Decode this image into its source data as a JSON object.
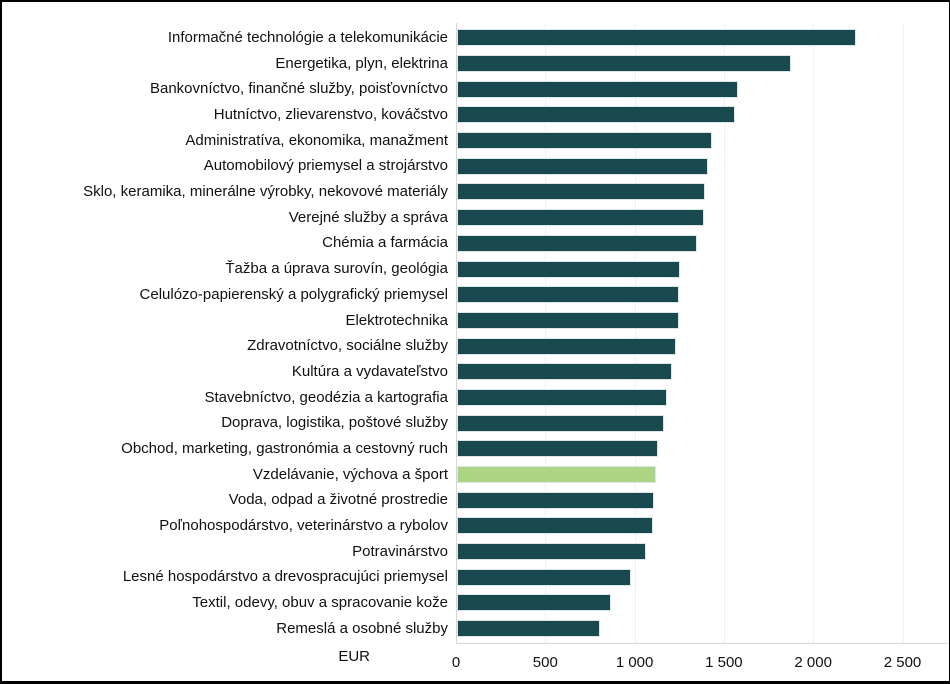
{
  "chart_data": {
    "type": "bar",
    "orientation": "horizontal",
    "title": "",
    "xlabel": "EUR",
    "ylabel": "",
    "categories": [
      "Informačné technológie a telekomunikácie",
      "Energetika, plyn, elektrina",
      "Bankovníctvo, finančné služby, poisťovníctvo",
      "Hutníctvo, zlievarenstvo, kováčstvo",
      "Administratíva, ekonomika, manažment",
      "Automobilový priemysel a strojárstvo",
      "Sklo, keramika, minerálne výrobky, nekovové materiály",
      "Verejné služby a správa",
      "Chémia a farmácia",
      "Ťažba a úprava surovín, geológia",
      "Celulózo-papierenský a polygrafický priemysel",
      "Elektrotechnika",
      "Zdravotníctvo, sociálne služby",
      "Kultúra a vydavateľstvo",
      "Stavebníctvo, geodézia a kartografia",
      "Doprava, logistika, poštové služby",
      "Obchod, marketing, gastronómia a cestovný ruch",
      "Vzdelávanie, výchova a šport",
      "Voda, odpad a životné prostredie",
      "Poľnohospodárstvo, veterinárstvo a rybolov",
      "Potravinárstvo",
      "Lesné hospodárstvo a drevospracujúci priemysel",
      "Textil, odevy, obuv a spracovanie kože",
      "Remeslá a osobné služby"
    ],
    "values": [
      2235,
      1870,
      1575,
      1555,
      1425,
      1405,
      1390,
      1385,
      1345,
      1250,
      1245,
      1240,
      1225,
      1205,
      1175,
      1160,
      1125,
      1115,
      1100,
      1095,
      1060,
      975,
      860,
      800
    ],
    "highlight_index": 17,
    "xlim": [
      0,
      2500
    ],
    "xticks": [
      0,
      500,
      1000,
      1500,
      2000,
      2500
    ],
    "xtick_labels": [
      "0",
      "500",
      "1 000",
      "1 500",
      "2 000",
      "2 500"
    ],
    "grid": true,
    "legend": "none",
    "colors": {
      "bar": "#17494E",
      "highlight": "#ACD482",
      "gridline": "#F0F0F0",
      "axis_line": "#D6D6D6",
      "text": "#111111"
    }
  }
}
